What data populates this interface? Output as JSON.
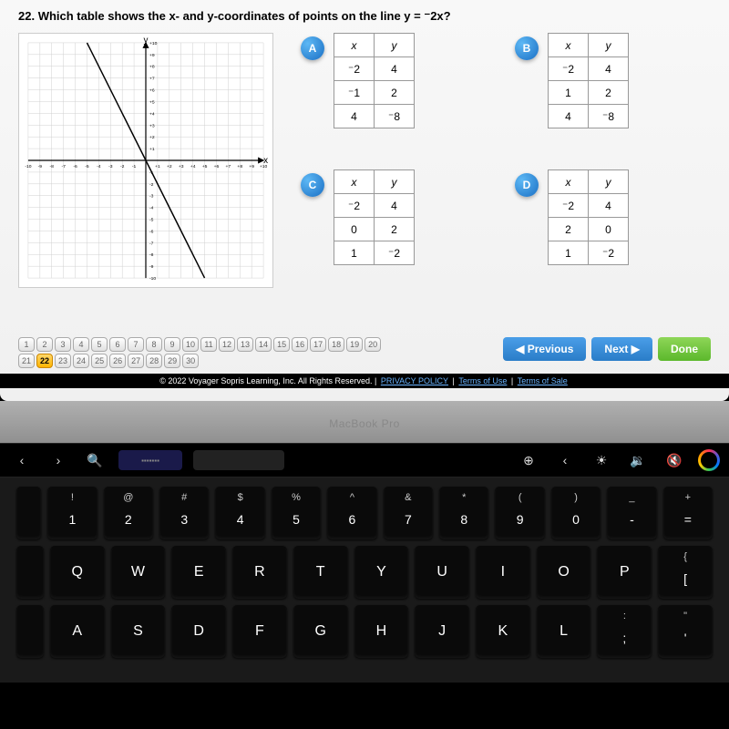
{
  "question": {
    "number": "22.",
    "text": "Which table shows the x- and y-coordinates of points on the line y = ⁻2x?"
  },
  "graph": {
    "xmin": -10,
    "xmax": 10,
    "ymin": -10,
    "ymax": 10,
    "grid_color": "#d0d0d0",
    "axis_color": "#000000",
    "line_color": "#000000",
    "line_points": [
      [
        -5,
        10
      ],
      [
        5,
        -10
      ]
    ],
    "y_label": "y",
    "x_label": "x"
  },
  "choices": [
    {
      "label": "A",
      "headers": [
        "x",
        "y"
      ],
      "rows": [
        [
          "⁻2",
          "4"
        ],
        [
          "⁻1",
          "2"
        ],
        [
          "4",
          "⁻8"
        ]
      ]
    },
    {
      "label": "B",
      "headers": [
        "x",
        "y"
      ],
      "rows": [
        [
          "⁻2",
          "4"
        ],
        [
          "1",
          "2"
        ],
        [
          "4",
          "⁻8"
        ]
      ]
    },
    {
      "label": "C",
      "headers": [
        "x",
        "y"
      ],
      "rows": [
        [
          "⁻2",
          "4"
        ],
        [
          "0",
          "2"
        ],
        [
          "1",
          "⁻2"
        ]
      ]
    },
    {
      "label": "D",
      "headers": [
        "x",
        "y"
      ],
      "rows": [
        [
          "⁻2",
          "4"
        ],
        [
          "2",
          "0"
        ],
        [
          "1",
          "⁻2"
        ]
      ]
    }
  ],
  "qnav": {
    "total": 30,
    "current": 22
  },
  "buttons": {
    "prev": "◀ Previous",
    "next": "Next ▶",
    "done": "Done"
  },
  "footer": {
    "copyright": "© 2022 Voyager Sopris Learning, Inc. All Rights Reserved. |",
    "links": [
      "PRIVACY POLICY",
      "Terms of Use",
      "Terms of Sale"
    ]
  },
  "laptop": {
    "label": "MacBook Pro"
  },
  "touchbar": {
    "left": [
      "‹",
      "›",
      "🔍"
    ],
    "right": [
      "⊕",
      "‹",
      "☀",
      "🔉",
      "🔇"
    ]
  },
  "keyboard": {
    "row1": [
      {
        "u": "!",
        "l": "1"
      },
      {
        "u": "@",
        "l": "2"
      },
      {
        "u": "#",
        "l": "3"
      },
      {
        "u": "$",
        "l": "4"
      },
      {
        "u": "%",
        "l": "5"
      },
      {
        "u": "^",
        "l": "6"
      },
      {
        "u": "&",
        "l": "7"
      },
      {
        "u": "*",
        "l": "8"
      },
      {
        "u": "(",
        "l": "9"
      },
      {
        "u": ")",
        "l": "0"
      },
      {
        "u": "_",
        "l": "-"
      },
      {
        "u": "+",
        "l": "="
      }
    ],
    "row2": [
      "Q",
      "W",
      "E",
      "R",
      "T",
      "Y",
      "U",
      "I",
      "O",
      "P"
    ],
    "row2_extra": [
      {
        "u": "{",
        "l": "["
      }
    ],
    "row3": [
      "A",
      "S",
      "D",
      "F",
      "G",
      "H",
      "J",
      "K",
      "L"
    ],
    "row3_extra": [
      {
        "u": ":",
        "l": ";"
      },
      {
        "u": "\"",
        "l": "'"
      }
    ]
  }
}
